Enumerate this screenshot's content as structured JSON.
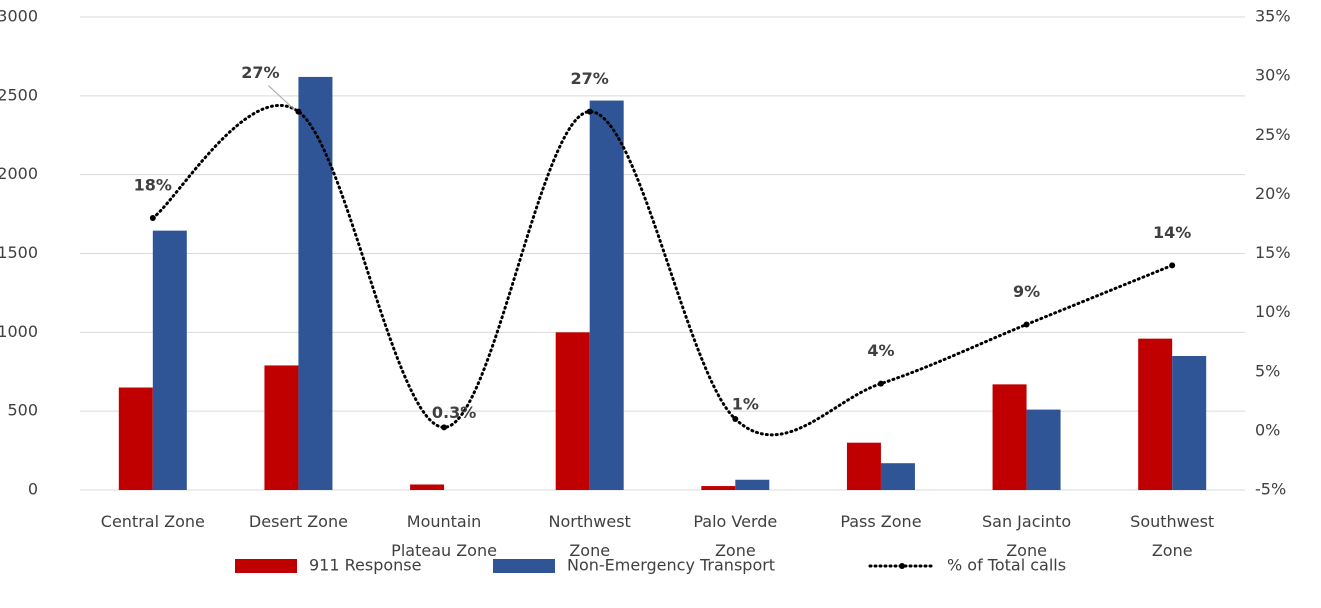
{
  "chart_data": {
    "type": "bar_line",
    "categories": [
      "Central Zone",
      "Desert Zone",
      "Mountain Plateau Zone",
      "Northwest Zone",
      "Palo Verde Zone",
      "Pass Zone",
      "San Jacinto Zone",
      "Southwest Zone"
    ],
    "series": [
      {
        "name": "911 Response",
        "type": "bar",
        "color": "#c00000",
        "values": [
          650,
          790,
          35,
          1000,
          25,
          300,
          670,
          960
        ]
      },
      {
        "name": "Non-Emergency Transport",
        "type": "bar",
        "color": "#2f5597",
        "values": [
          1645,
          2620,
          0,
          2470,
          65,
          170,
          510,
          850
        ]
      },
      {
        "name": "% of Total calls",
        "type": "line",
        "axis": "y2",
        "color": "#000000",
        "values": [
          18,
          27,
          0.3,
          27,
          1,
          4,
          9,
          14
        ],
        "value_labels": [
          "18%",
          "27%",
          "0.3%",
          "27%",
          "1%",
          "4%",
          "9%",
          "14%"
        ]
      }
    ],
    "ylim": [
      0,
      3000
    ],
    "yticks": [
      0,
      500,
      1000,
      1500,
      2000,
      2500,
      3000
    ],
    "y2lim": [
      -5,
      35
    ],
    "y2ticks": [
      {
        "value": -5,
        "label": "-5%"
      },
      {
        "value": 0,
        "label": "0%"
      },
      {
        "value": 5,
        "label": "5%"
      },
      {
        "value": 10,
        "label": "10%"
      },
      {
        "value": 15,
        "label": "15%"
      },
      {
        "value": 20,
        "label": "20%"
      },
      {
        "value": 25,
        "label": "25%"
      },
      {
        "value": 30,
        "label": "30%"
      },
      {
        "value": 35,
        "label": "35%"
      }
    ],
    "grid": true,
    "legend": "bottom"
  }
}
